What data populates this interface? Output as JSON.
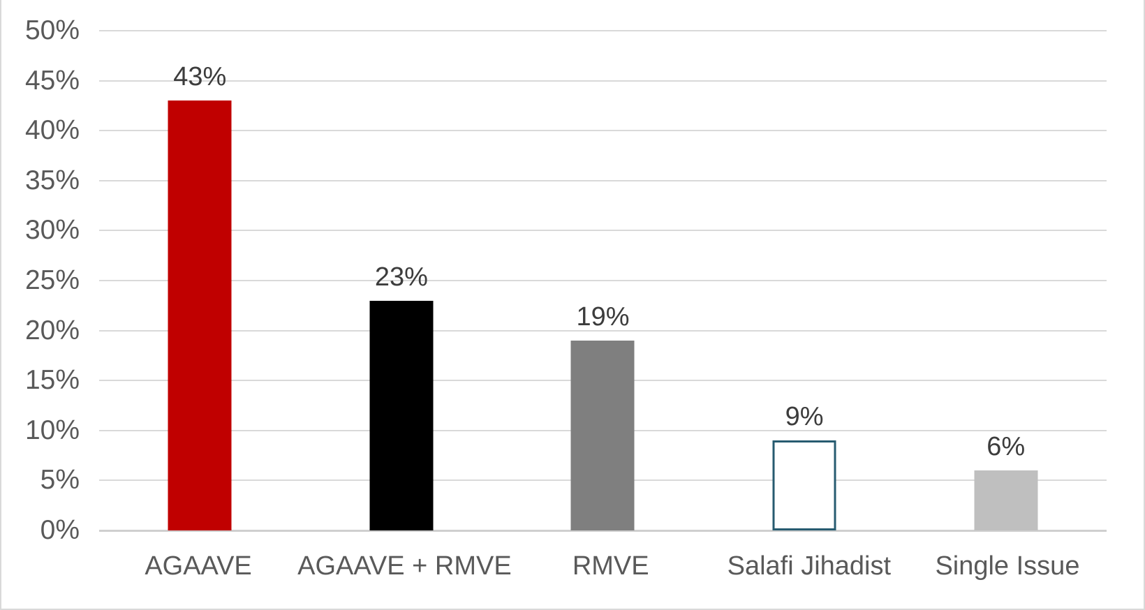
{
  "chart_data": {
    "type": "bar",
    "title": "",
    "xlabel": "",
    "ylabel": "",
    "categories": [
      "AGAAVE",
      "AGAAVE + RMVE",
      "RMVE",
      "Salafi Jihadist",
      "Single Issue"
    ],
    "values": [
      43,
      23,
      19,
      9,
      6
    ],
    "data_labels": [
      "43%",
      "23%",
      "19%",
      "9%",
      "6%"
    ],
    "bar_styles": [
      {
        "fill": "#C00000",
        "border": "none"
      },
      {
        "fill": "#000000",
        "border": "none"
      },
      {
        "fill": "#7F7F7F",
        "border": "none"
      },
      {
        "fill": "#FFFFFF",
        "border": "#275B70"
      },
      {
        "fill": "#BFBFBF",
        "border": "none"
      }
    ],
    "ylim": [
      0,
      50
    ],
    "ytick_step": 5,
    "ytick_labels": [
      "0%",
      "5%",
      "10%",
      "15%",
      "20%",
      "25%",
      "30%",
      "35%",
      "40%",
      "45%",
      "50%"
    ],
    "grid": true,
    "legend": false,
    "colors": {
      "gridline": "#D9D9D9",
      "axis_line": "#CFCFCF",
      "tick_text": "#595959",
      "value_label_text": "#3C3C3C",
      "category_text": "#595959",
      "background": "#FFFFFF",
      "frame_border": "#D9D9D9"
    }
  }
}
